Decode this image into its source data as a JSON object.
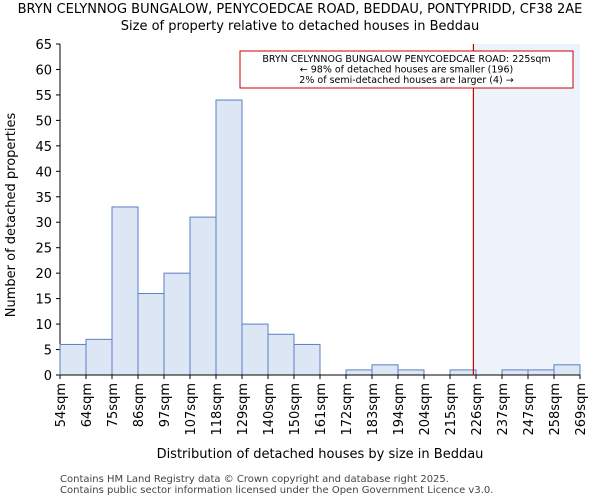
{
  "title_line1": "BRYN CELYNNOG BUNGALOW, PENYCOEDCAE ROAD, BEDDAU, PONTYPRIDD, CF38 2AE",
  "title_line2": "Size of property relative to detached houses in Beddau",
  "footer_line1": "Contains HM Land Registry data © Crown copyright and database right 2025.",
  "footer_line2": "Contains public sector information licensed under the Open Government Licence v3.0.",
  "colors": {
    "bar_fill": "#dce6f5",
    "bar_stroke": "#5b7fc4",
    "marker": "#cc0000",
    "highlight": "#eef2fb",
    "annotation_border": "#cc0000"
  },
  "chart_data": {
    "type": "bar",
    "title": "BRYN CELYNNOG BUNGALOW, PENYCOEDCAE ROAD, BEDDAU, PONTYPRIDD, CF38 2AE",
    "subtitle": "Size of property relative to detached houses in Beddau",
    "xlabel": "Distribution of detached houses by size in Beddau",
    "ylabel": "Number of detached properties",
    "ylim": [
      0,
      65
    ],
    "yticks": [
      0,
      5,
      10,
      15,
      20,
      25,
      30,
      35,
      40,
      45,
      50,
      55,
      60,
      65
    ],
    "bin_edges": [
      "54sqm",
      "64sqm",
      "75sqm",
      "86sqm",
      "97sqm",
      "107sqm",
      "118sqm",
      "129sqm",
      "140sqm",
      "150sqm",
      "161sqm",
      "172sqm",
      "183sqm",
      "194sqm",
      "204sqm",
      "215sqm",
      "226sqm",
      "237sqm",
      "247sqm",
      "258sqm",
      "269sqm"
    ],
    "values": [
      6,
      7,
      33,
      16,
      20,
      31,
      54,
      10,
      8,
      6,
      0,
      1,
      2,
      1,
      0,
      1,
      0,
      1,
      1,
      2
    ],
    "marker_value": 225,
    "marker_bin_fraction": 15.9,
    "annotation": {
      "line1": "BRYN CELYNNOG BUNGALOW PENYCOEDCAE ROAD: 225sqm",
      "line2": "← 98% of detached houses are smaller (196)",
      "line3": "2% of semi-detached houses are larger (4) →"
    }
  }
}
